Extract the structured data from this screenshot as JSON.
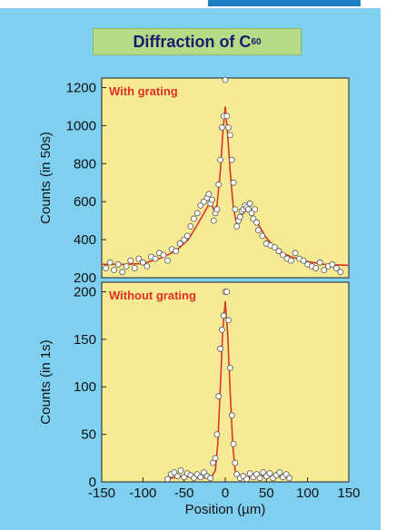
{
  "title": {
    "main": "Diffraction of C",
    "subscript": "60"
  },
  "colors": {
    "background": "#7fd0f0",
    "plot_bg": "#f6eb94",
    "fit_line": "#d9362a",
    "points_fill": "#ffffff",
    "points_stroke": "#555555",
    "title_bg": "#b5db87",
    "title_text": "#1b1b6b",
    "topbar": "#1f7fc4"
  },
  "xlabel": "Position (µm)",
  "chart_data": [
    {
      "type": "scatter",
      "panel_label": "With grating",
      "ylabel": "Counts (in 50s)",
      "xlim": [
        -150,
        150
      ],
      "ylim": [
        200,
        1250
      ],
      "yticks": [
        200,
        400,
        600,
        800,
        1000,
        1200
      ],
      "xticks": [],
      "fit": {
        "x": [
          -150,
          -120,
          -100,
          -80,
          -60,
          -45,
          -35,
          -25,
          -18,
          -14,
          -10,
          -6,
          -3,
          0,
          3,
          6,
          10,
          14,
          18,
          22,
          26,
          30,
          35,
          40,
          50,
          60,
          70,
          80,
          100,
          120,
          150
        ],
        "y": [
          270,
          270,
          275,
          300,
          340,
          400,
          470,
          545,
          600,
          560,
          580,
          760,
          960,
          1100,
          950,
          760,
          560,
          480,
          510,
          540,
          555,
          545,
          520,
          480,
          410,
          360,
          330,
          310,
          285,
          270,
          265
        ]
      },
      "points": {
        "x": [
          -145,
          -140,
          -135,
          -130,
          -125,
          -120,
          -115,
          -110,
          -105,
          -100,
          -95,
          -90,
          -85,
          -80,
          -75,
          -70,
          -65,
          -60,
          -55,
          -50,
          -46,
          -42,
          -38,
          -34,
          -30,
          -26,
          -22,
          -20,
          -18,
          -16,
          -14,
          -12,
          -10,
          -8,
          -6,
          -4,
          -2,
          0,
          2,
          4,
          6,
          8,
          10,
          12,
          14,
          16,
          18,
          20,
          22,
          24,
          26,
          28,
          30,
          32,
          34,
          36,
          38,
          40,
          45,
          50,
          55,
          60,
          65,
          70,
          75,
          80,
          85,
          90,
          95,
          100,
          105,
          110,
          115,
          120,
          125,
          130,
          135,
          140
        ],
        "y": [
          250,
          280,
          240,
          270,
          230,
          260,
          290,
          250,
          300,
          280,
          260,
          310,
          300,
          330,
          320,
          290,
          350,
          340,
          380,
          400,
          420,
          470,
          510,
          540,
          580,
          600,
          620,
          640,
          590,
          610,
          500,
          540,
          560,
          690,
          820,
          990,
          1050,
          1240,
          1050,
          990,
          950,
          820,
          700,
          560,
          470,
          500,
          520,
          550,
          560,
          580,
          570,
          560,
          590,
          540,
          510,
          560,
          490,
          450,
          420,
          380,
          370,
          360,
          340,
          320,
          300,
          290,
          330,
          300,
          290,
          270,
          260,
          250,
          280,
          240,
          260,
          270,
          250,
          230
        ]
      }
    },
    {
      "type": "scatter",
      "panel_label": "Without  grating",
      "ylabel": "Counts (in 1s)",
      "xlim": [
        -150,
        150
      ],
      "ylim": [
        0,
        210
      ],
      "yticks": [
        0,
        50,
        100,
        150,
        200
      ],
      "xticks": [
        -150,
        -100,
        -50,
        0,
        50,
        100,
        150
      ],
      "fit": {
        "x": [
          -70,
          -60,
          -50,
          -40,
          -30,
          -20,
          -16,
          -12,
          -9,
          -6,
          -3,
          0,
          3,
          6,
          9,
          12,
          16,
          20,
          30,
          40,
          50,
          60,
          70,
          80
        ],
        "y": [
          3,
          5,
          6,
          5,
          4,
          5,
          6,
          12,
          40,
          100,
          160,
          190,
          155,
          95,
          40,
          12,
          5,
          4,
          5,
          6,
          7,
          6,
          5,
          4
        ]
      },
      "points": {
        "x": [
          -70,
          -66,
          -62,
          -58,
          -54,
          -50,
          -46,
          -42,
          -38,
          -34,
          -30,
          -26,
          -22,
          -18,
          -15,
          -12,
          -10,
          -8,
          -6,
          -4,
          -2,
          0,
          2,
          4,
          6,
          8,
          10,
          12,
          14,
          18,
          22,
          26,
          30,
          34,
          38,
          42,
          46,
          50,
          54,
          58,
          62,
          66,
          70,
          74,
          78
        ],
        "y": [
          3,
          8,
          10,
          6,
          12,
          5,
          9,
          7,
          4,
          8,
          5,
          10,
          6,
          4,
          20,
          25,
          50,
          90,
          140,
          160,
          175,
          200,
          200,
          170,
          120,
          70,
          40,
          20,
          8,
          4,
          6,
          3,
          9,
          5,
          8,
          4,
          10,
          6,
          9,
          4,
          7,
          10,
          5,
          8,
          4
        ]
      }
    }
  ]
}
